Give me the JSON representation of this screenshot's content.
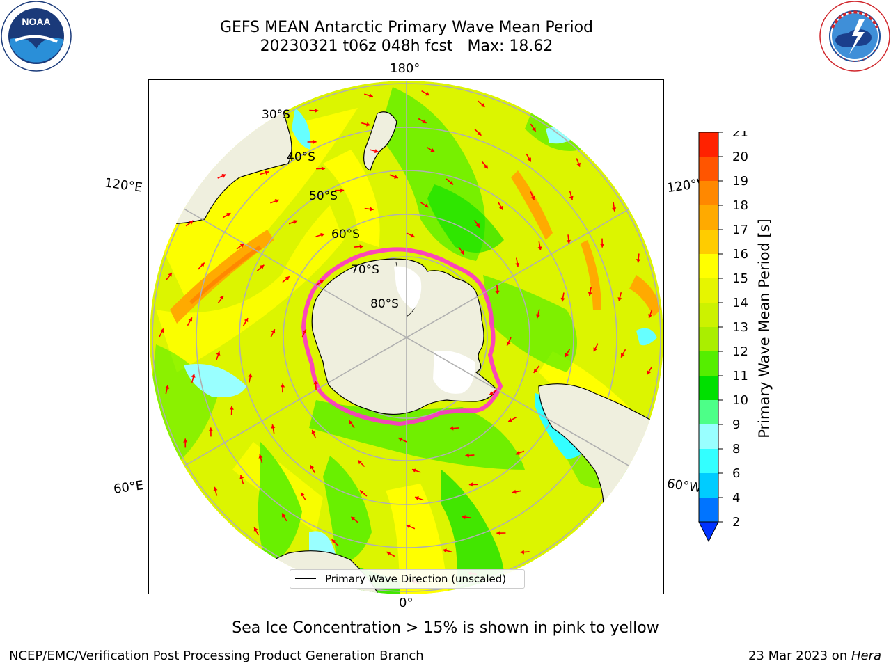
{
  "header": {
    "title_line1": "GEFS MEAN Antarctic Primary Wave Mean Period",
    "title_line2_run": "20230321 t06z 048h fcst",
    "title_line2_max": "Max: 18.62"
  },
  "logos": {
    "noaa": {
      "text": "NOAA",
      "ring_text": "NATIONAL OCEANIC AND ATMOSPHERIC ADMINISTRATION · U.S. DEPARTMENT OF COMMERCE"
    },
    "nws": {
      "ring_text": "NATIONAL WEATHER SERVICE"
    }
  },
  "map": {
    "longitude_labels": {
      "top": "180°",
      "bottom": "0°",
      "left_upper": "120°E",
      "right_upper": "120°W",
      "left_lower": "60°E",
      "right_lower": "60°W"
    },
    "latitude_labels": [
      "30°S",
      "40°S",
      "50°S",
      "60°S",
      "70°S",
      "80°S"
    ],
    "legend_label": "Primary Wave Direction (unscaled)",
    "colors": {
      "land": "#efefde",
      "ocean_base": "#dcf500",
      "ice_edge": "#ff33cc",
      "arrow": "#ff0000",
      "grid": "#b0b0b0"
    }
  },
  "colorbar": {
    "label": "Primary Wave Mean Period [s]",
    "ticks": [
      "2",
      "4",
      "6",
      "8",
      "9",
      "10",
      "11",
      "12",
      "13",
      "14",
      "15",
      "16",
      "17",
      "18",
      "19",
      "20",
      "21"
    ],
    "colors": [
      "#0074ff",
      "#00ccff",
      "#33ffff",
      "#99ffff",
      "#4dff88",
      "#00e000",
      "#55ee00",
      "#aaee00",
      "#ccf200",
      "#e6f500",
      "#ffff00",
      "#ffcc00",
      "#ffaa00",
      "#ff8800",
      "#ff5500",
      "#ff2200"
    ],
    "extend_color": "#0033ff"
  },
  "footer": {
    "subtitle": "Sea Ice Concentration > 15% is shown in pink to yellow",
    "left": "NCEP/EMC/Verification Post Processing Product Generation Branch",
    "right_date": "23 Mar 2023 on ",
    "right_machine": "Hera"
  }
}
